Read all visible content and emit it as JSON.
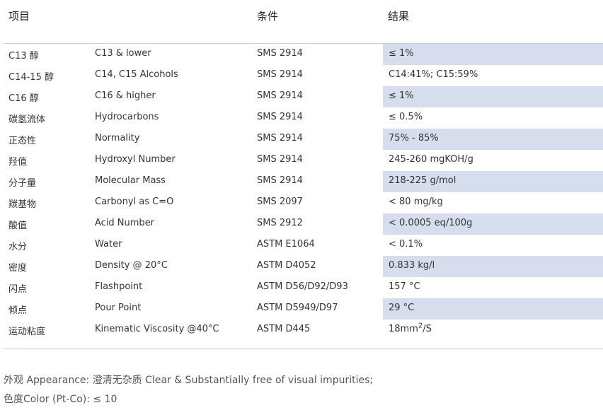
{
  "headers": {
    "item": "项目",
    "condition": "条件",
    "result": "结果"
  },
  "rows": [
    {
      "cn": "C13 醇",
      "en": "C13 & lower",
      "condition": "SMS 2914",
      "result": "≤ 1%",
      "shaded": true
    },
    {
      "cn": "C14-15 醇",
      "en": "C14, C15 Alcohols",
      "condition": "SMS 2914",
      "result": "C14:41%;  C15:59%",
      "shaded": false
    },
    {
      "cn": "C16 醇",
      "en": "C16 & higher",
      "condition": "SMS 2914",
      "result": "≤ 1%",
      "shaded": true
    },
    {
      "cn": "碳氢流体",
      "en": "Hydrocarbons",
      "condition": "SMS 2914",
      "result": "≤ 0.5%",
      "shaded": false
    },
    {
      "cn": "正态性",
      "en": "Normality",
      "condition": "SMS 2914",
      "result": " 75% - 85%",
      "shaded": true
    },
    {
      "cn": "羟值",
      "en": "Hydroxyl Number",
      "condition": "SMS 2914",
      "result": "245-260 mgKOH/g",
      "shaded": false
    },
    {
      "cn": "分子量",
      "en": "Molecular Mass",
      "condition": "SMS 2914",
      "result": "218-225 g/mol",
      "shaded": true
    },
    {
      "cn": "羰基物",
      "en": "Carbonyl as C=O",
      "condition": "SMS 2097",
      "result": "< 80 mg/kg",
      "shaded": false
    },
    {
      "cn": "酸值",
      "en": "Acid Number",
      "condition": "SMS 2912",
      "result": "< 0.0005 eq/100g",
      "shaded": true
    },
    {
      "cn": "水分",
      "en": "Water",
      "condition": "ASTM E1064",
      "result": "< 0.1%",
      "shaded": false
    },
    {
      "cn": "密度",
      "en": "Density @ 20°C",
      "condition": "ASTM D4052",
      "result": "0.833 kg/l",
      "shaded": true
    },
    {
      "cn": "闪点",
      "en": "Flashpoint",
      "condition": "ASTM D56/D92/D93",
      "result": "157 °C",
      "shaded": false
    },
    {
      "cn": "倾点",
      "en": "Pour Point",
      "condition": "ASTM D5949/D97",
      "result": "29 °C",
      "shaded": true
    }
  ],
  "last_row": {
    "cn": "运动粘度",
    "en": "Kinematic Viscosity @40°C",
    "condition": "ASTM D445",
    "result_base": "18mm",
    "result_sup": "2",
    "result_tail": "/S"
  },
  "footer": {
    "appearance": "外观 Appearance: 澄清无杂质 Clear & Substantially free of visual impurities;",
    "color": "色度Color (Pt-Co): ≤ 10"
  },
  "colors": {
    "shade": "#d6deed",
    "rule": "#c5d2e4"
  }
}
